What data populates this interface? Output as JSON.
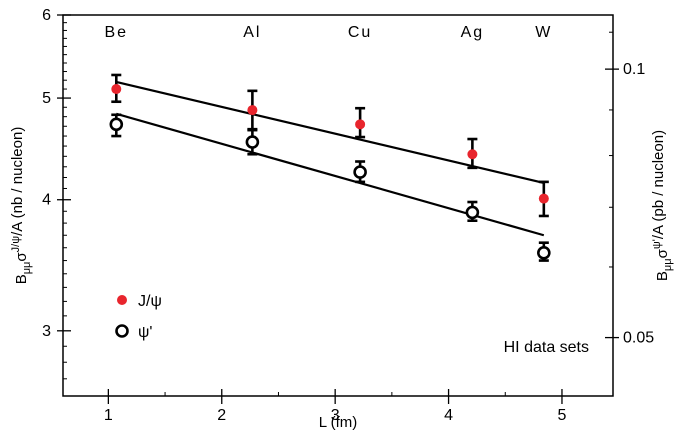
{
  "chart_data": {
    "type": "scatter",
    "title": "",
    "xlabel": "L (fm)",
    "ylabel_left": {
      "main": "B",
      "sub": "μμ",
      "mid": "σ",
      "sup": "J/ψ",
      "tail": "/A (nb / nucleon)"
    },
    "ylabel_right": {
      "main": "B",
      "sub": "μμ",
      "mid": "σ",
      "sup": "ψ'",
      "tail": "/A (pb / nucleon)"
    },
    "xlim": [
      0.6,
      5.45
    ],
    "x_ticks": [
      1,
      2,
      3,
      4,
      5
    ],
    "x_minor_ticks": [
      1.5,
      2.5,
      3.5,
      4.5
    ],
    "yscale": "log",
    "ylim_left": [
      2.6,
      6
    ],
    "y_ticks_left": [
      3,
      4,
      5,
      6
    ],
    "ylim_right": [
      0.043,
      0.115
    ],
    "y_ticks_right": [
      0.05,
      0.1
    ],
    "y_ticks_right_labels": [
      "0.05",
      "0.1"
    ],
    "top_labels": [
      {
        "x": 1.07,
        "text": "Be"
      },
      {
        "x": 2.27,
        "text": "Al"
      },
      {
        "x": 3.22,
        "text": "Cu"
      },
      {
        "x": 4.21,
        "text": "Ag"
      },
      {
        "x": 4.84,
        "text": "W"
      }
    ],
    "series": [
      {
        "name": "J/ψ",
        "marker": "filled-circle",
        "color": "#e8252d",
        "x": [
          1.07,
          2.27,
          3.22,
          4.21,
          4.84
        ],
        "y": [
          5.1,
          4.87,
          4.72,
          4.42,
          4.01
        ],
        "yerr_low": [
          4.96,
          4.67,
          4.59,
          4.29,
          3.86
        ],
        "yerr_high": [
          5.26,
          5.08,
          4.89,
          4.57,
          4.16
        ]
      },
      {
        "name": "ψ'",
        "marker": "open-circle",
        "color": "#000000",
        "x": [
          1.07,
          2.27,
          3.22,
          4.21,
          4.84
        ],
        "y": [
          4.72,
          4.54,
          4.25,
          3.89,
          3.56
        ],
        "yerr_low": [
          4.6,
          4.42,
          4.16,
          3.82,
          3.5
        ],
        "yerr_high": [
          4.82,
          4.66,
          4.35,
          3.98,
          3.64
        ]
      }
    ],
    "fit_lines": [
      {
        "series": "J/ψ",
        "x": [
          1.07,
          4.84
        ],
        "y": [
          5.18,
          4.15
        ]
      },
      {
        "series": "ψ'",
        "x": [
          1.07,
          4.84
        ],
        "y": [
          4.83,
          3.7
        ]
      }
    ],
    "legend": {
      "placement": "bottom-left",
      "entries": [
        {
          "label": "J/ψ",
          "marker": "filled-circle",
          "color": "#e8252d"
        },
        {
          "label": "ψ'",
          "marker": "open-circle",
          "color": "#000000"
        }
      ]
    },
    "annotation": "HI data sets",
    "grid": false
  }
}
